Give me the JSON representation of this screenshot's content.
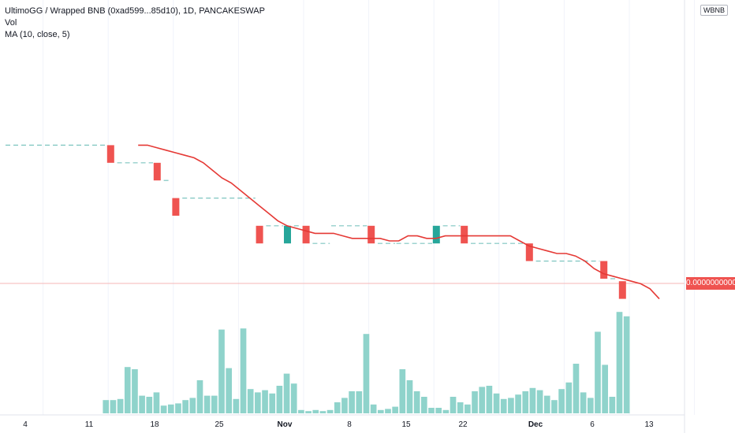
{
  "header": {
    "symbol_line": "UltimoGG / Wrapped BNB (0xad599...85d10), 1D, PANCAKESWAP",
    "volume_label": "Vol",
    "ma_label": "MA (10, close, 5)"
  },
  "price_scale": {
    "currency_label": "WBNB",
    "last_price": "0.0000000000"
  },
  "colors": {
    "up": "#26a69a",
    "down": "#ef5350",
    "ma": "#e53935",
    "volume": "#8fd3cb",
    "dashed_level": "#7ec5c0",
    "price_line": "#f6b6b6"
  },
  "chart_data": {
    "type": "bar",
    "title": "UltimoGG / Wrapped BNB (0xad599...85d10), 1D, PANCAKESWAP",
    "xlabel": "",
    "ylabel": "",
    "x_tick_labels": [
      "4",
      "11",
      "18",
      "25",
      "Nov",
      "8",
      "15",
      "22",
      "Dec",
      "6",
      "13"
    ],
    "grid": true,
    "notes_visible": "Price values are shown on a 0.0000000000 scale; candle and MA values below are relative price levels read from the chart.",
    "candles": [
      {
        "idx": 11,
        "open": 7.3,
        "close": 6.6,
        "dir": "down"
      },
      {
        "idx": 16,
        "open": 6.6,
        "close": 5.9,
        "dir": "down"
      },
      {
        "idx": 18,
        "open": 5.2,
        "close": 4.5,
        "dir": "down"
      },
      {
        "idx": 27,
        "open": 4.1,
        "close": 3.4,
        "dir": "down"
      },
      {
        "idx": 30,
        "open": 3.4,
        "close": 4.1,
        "dir": "up"
      },
      {
        "idx": 32,
        "open": 4.1,
        "close": 3.4,
        "dir": "down"
      },
      {
        "idx": 39,
        "open": 4.1,
        "close": 3.4,
        "dir": "down"
      },
      {
        "idx": 46,
        "open": 3.4,
        "close": 4.1,
        "dir": "up"
      },
      {
        "idx": 49,
        "open": 4.1,
        "close": 3.4,
        "dir": "down"
      },
      {
        "idx": 56,
        "open": 3.4,
        "close": 2.7,
        "dir": "down"
      },
      {
        "idx": 64,
        "open": 2.7,
        "close": 2.0,
        "dir": "down"
      },
      {
        "idx": 66,
        "open": 1.9,
        "close": 1.2,
        "dir": "down"
      }
    ],
    "ma_series": {
      "name": "MA (10, close, 5)",
      "points": [
        [
          14,
          7.3
        ],
        [
          15,
          7.3
        ],
        [
          16,
          7.2
        ],
        [
          17,
          7.1
        ],
        [
          18,
          7.0
        ],
        [
          19,
          6.9
        ],
        [
          20,
          6.8
        ],
        [
          21,
          6.6
        ],
        [
          22,
          6.3
        ],
        [
          23,
          6.0
        ],
        [
          24,
          5.8
        ],
        [
          25,
          5.5
        ],
        [
          26,
          5.2
        ],
        [
          27,
          4.9
        ],
        [
          28,
          4.6
        ],
        [
          29,
          4.3
        ],
        [
          30,
          4.1
        ],
        [
          31,
          4.0
        ],
        [
          32,
          3.9
        ],
        [
          33,
          3.8
        ],
        [
          34,
          3.8
        ],
        [
          35,
          3.8
        ],
        [
          36,
          3.7
        ],
        [
          37,
          3.6
        ],
        [
          38,
          3.6
        ],
        [
          39,
          3.6
        ],
        [
          40,
          3.6
        ],
        [
          41,
          3.5
        ],
        [
          42,
          3.5
        ],
        [
          43,
          3.7
        ],
        [
          44,
          3.7
        ],
        [
          45,
          3.6
        ],
        [
          46,
          3.6
        ],
        [
          47,
          3.7
        ],
        [
          48,
          3.7
        ],
        [
          49,
          3.7
        ],
        [
          50,
          3.7
        ],
        [
          51,
          3.7
        ],
        [
          52,
          3.7
        ],
        [
          53,
          3.7
        ],
        [
          54,
          3.7
        ],
        [
          55,
          3.5
        ],
        [
          56,
          3.3
        ],
        [
          57,
          3.2
        ],
        [
          58,
          3.1
        ],
        [
          59,
          3.0
        ],
        [
          60,
          3.0
        ],
        [
          61,
          2.9
        ],
        [
          62,
          2.7
        ],
        [
          63,
          2.4
        ],
        [
          64,
          2.2
        ],
        [
          65,
          2.1
        ],
        [
          66,
          2.0
        ],
        [
          67,
          1.9
        ],
        [
          68,
          1.8
        ],
        [
          69,
          1.6
        ],
        [
          70,
          1.2
        ]
      ]
    },
    "volume_series": {
      "name": "Vol",
      "values": [
        0,
        0,
        0,
        0,
        0,
        0,
        0,
        0,
        0,
        0,
        0,
        0,
        0,
        0,
        0.12,
        0.12,
        0.13,
        0.42,
        0.4,
        0.16,
        0.15,
        0.19,
        0.07,
        0.08,
        0.09,
        0.12,
        0.14,
        0.3,
        0.16,
        0.16,
        0.76,
        0.41,
        0.13,
        0.77,
        0.22,
        0.19,
        0.21,
        0.18,
        0.25,
        0.36,
        0.27,
        0.03,
        0.02,
        0.03,
        0.02,
        0.03,
        0.1,
        0.14,
        0.2,
        0.2,
        0.72,
        0.08,
        0.03,
        0.04,
        0.06,
        0.4,
        0.3,
        0.2,
        0.15,
        0.05,
        0.05,
        0.03,
        0.15,
        0.1,
        0.08,
        0.2,
        0.24,
        0.25,
        0.18,
        0.13,
        0.14,
        0.17,
        0.2,
        0.23,
        0.21,
        0.16,
        0.12,
        0.22,
        0.28,
        0.45,
        0.19,
        0.14,
        0.74,
        0.44,
        0.15,
        0.92,
        0.88
      ]
    }
  }
}
